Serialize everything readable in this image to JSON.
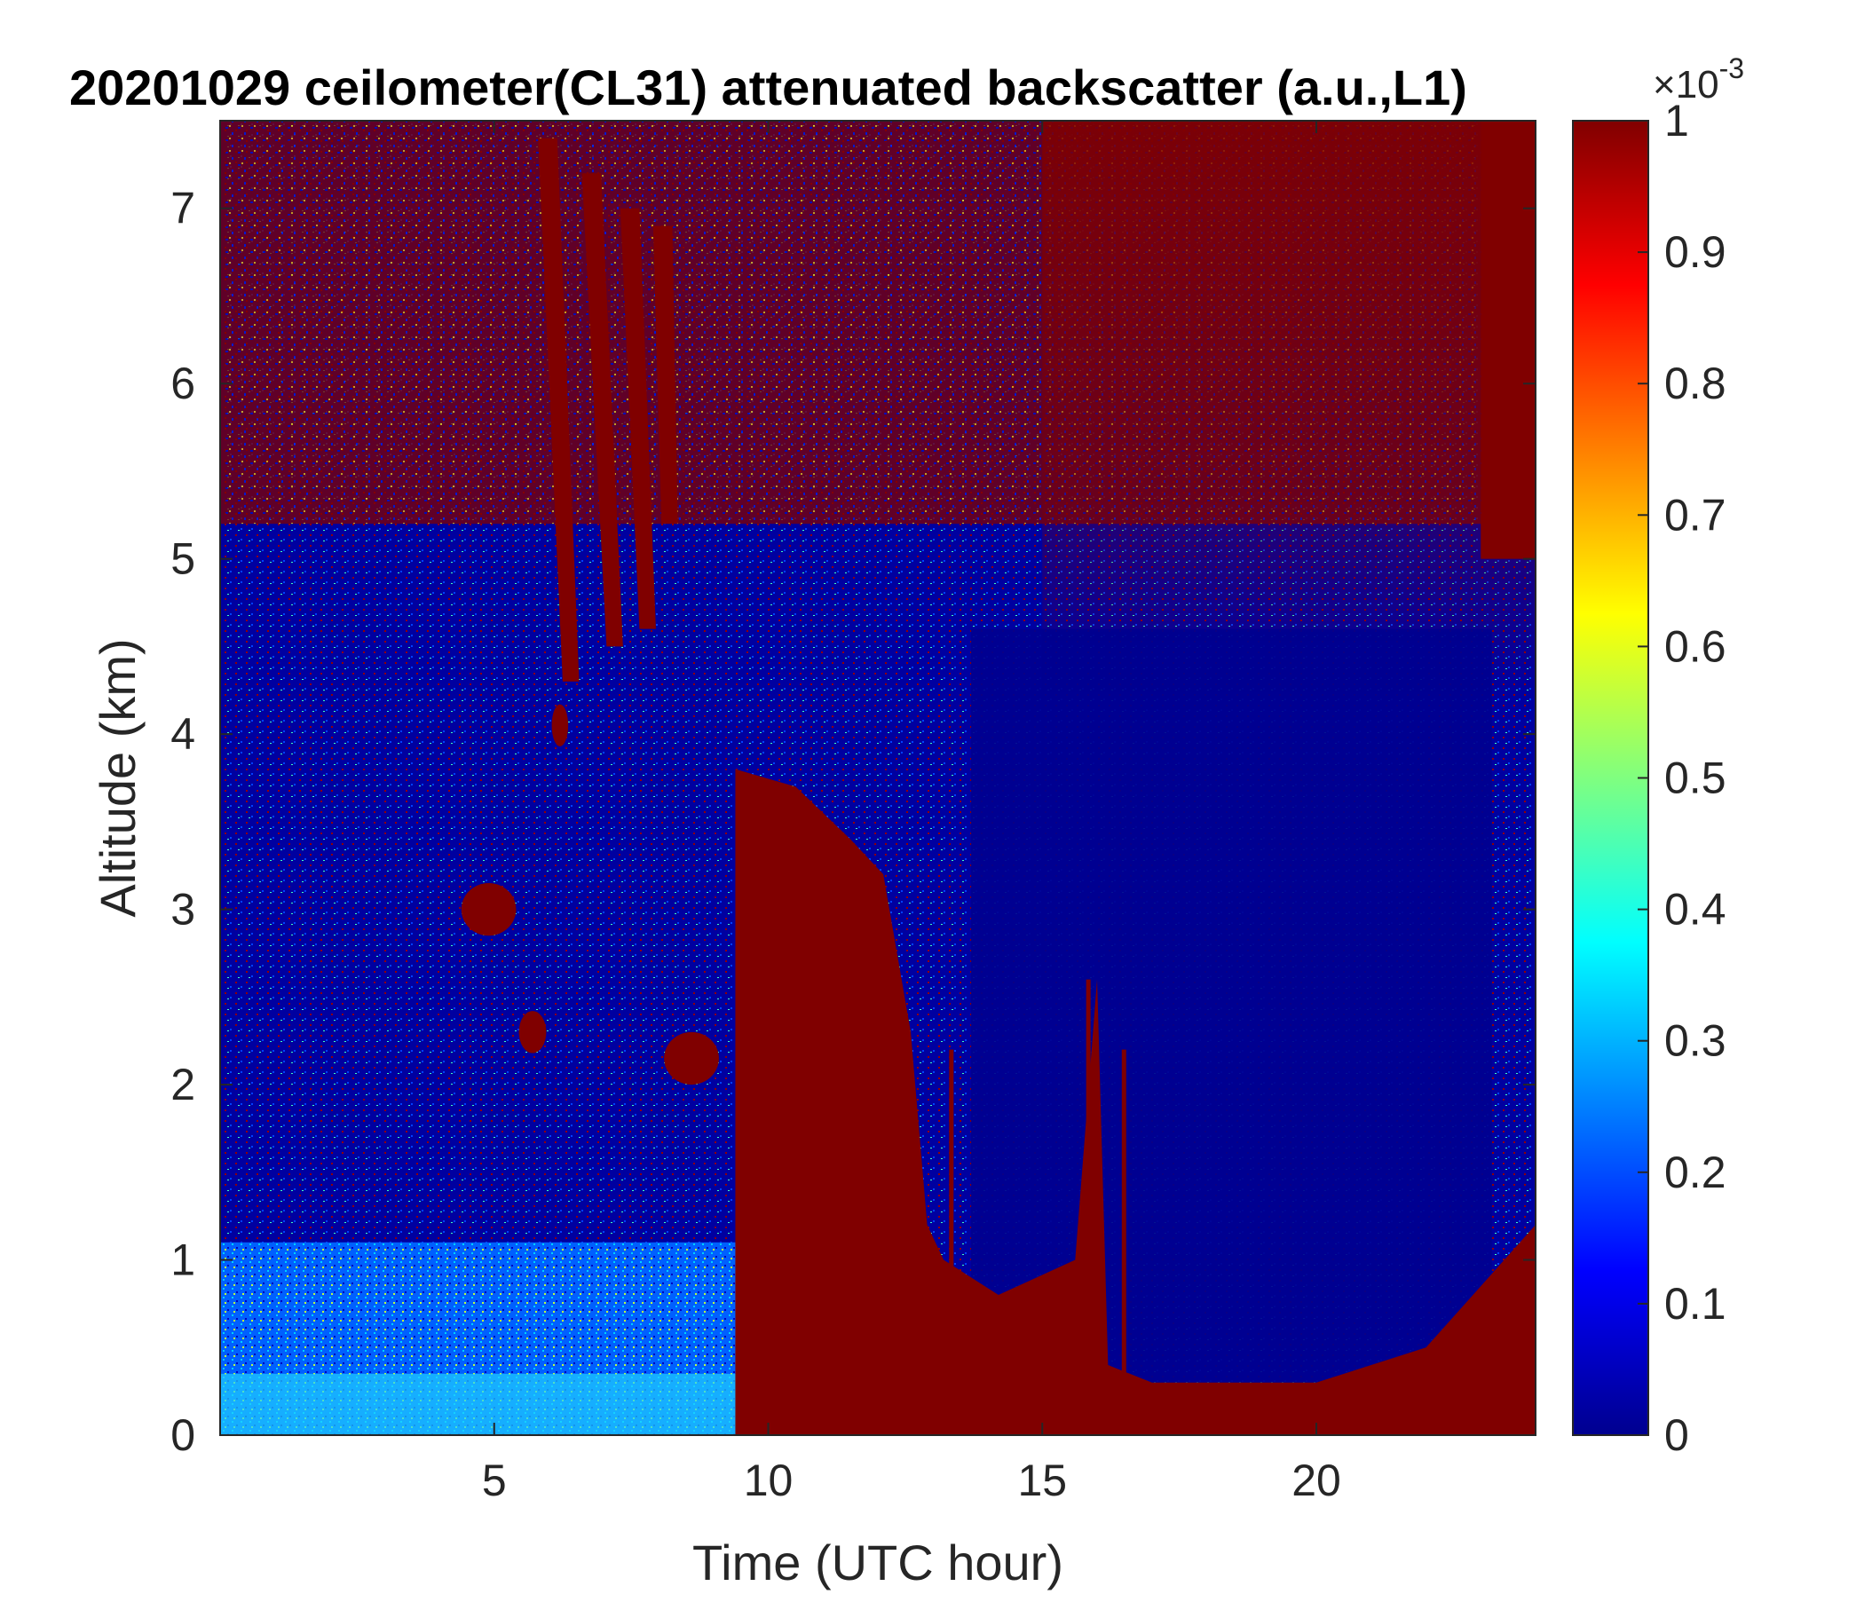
{
  "chart_data": {
    "type": "heatmap",
    "title": "20201029 ceilometer(CL31) attenuated backscatter (a.u.,L1)",
    "xlabel": "Time (UTC hour)",
    "ylabel": "Altitude (km)",
    "xlim": [
      0,
      24
    ],
    "ylim": [
      0,
      7.5
    ],
    "x_ticks": [
      5,
      10,
      15,
      20
    ],
    "x_tick_labels": [
      "5",
      "10",
      "15",
      "20"
    ],
    "y_ticks": [
      0,
      1,
      2,
      3,
      4,
      5,
      6,
      7
    ],
    "y_tick_labels": [
      "0",
      "1",
      "2",
      "3",
      "4",
      "5",
      "6",
      "7"
    ],
    "colorbar": {
      "colormap": "jet",
      "range": [
        0,
        0.001
      ],
      "exponent_label": "×10",
      "exponent_value": "-3",
      "ticks": [
        0,
        0.1,
        0.2,
        0.3,
        0.4,
        0.5,
        0.6,
        0.7,
        0.8,
        0.9,
        1
      ],
      "tick_labels": [
        "0",
        "0.1",
        "0.2",
        "0.3",
        "0.4",
        "0.5",
        "0.6",
        "0.7",
        "0.8",
        "0.9",
        "1"
      ]
    },
    "features": [
      {
        "name": "saturated cloud block",
        "time_range_h": [
          9.4,
          12.8
        ],
        "altitude_range_km": [
          0,
          3.8
        ]
      },
      {
        "name": "cloud top after 13h",
        "time_range_h": [
          13,
          24
        ],
        "altitude_range_km": [
          0,
          0.3
        ]
      },
      {
        "name": "elevated cloud top",
        "time_range_h": [
          12.8,
          16.5
        ],
        "altitude_range_km": [
          0,
          1.0
        ]
      },
      {
        "name": "aerosol layer",
        "time_range_h": [
          0,
          10
        ],
        "altitude_range_km": [
          0,
          1.1
        ]
      },
      {
        "name": "high cloud streaks",
        "time_range_h": [
          5.8,
          8.2
        ],
        "altitude_range_km": [
          4.3,
          7.5
        ]
      },
      {
        "name": "low-signal region",
        "time_range_h": [
          13.7,
          23
        ],
        "altitude_range_km": [
          0.3,
          4.5
        ]
      }
    ],
    "grid": false
  }
}
